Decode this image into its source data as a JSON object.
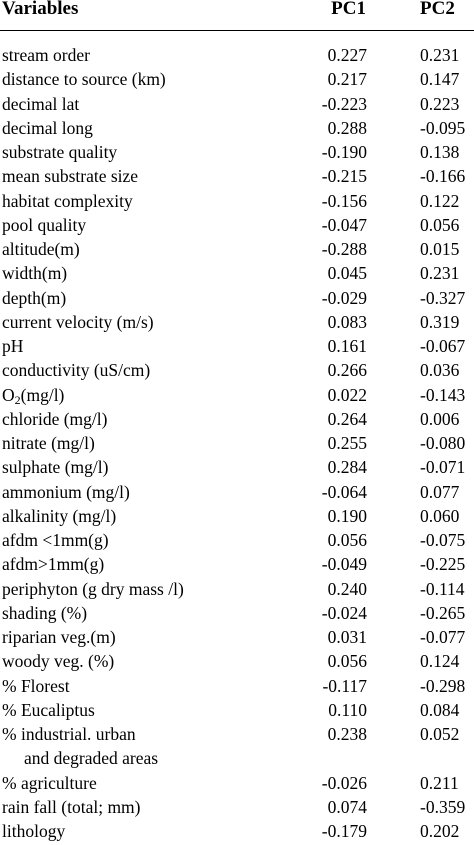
{
  "header": {
    "variables": "Variables",
    "pc1": "PC1",
    "pc2": "PC2"
  },
  "rows": [
    {
      "name": "stream order",
      "pc1": "0.227",
      "pc2": "0.231"
    },
    {
      "name": "distance to source (km)",
      "pc1": "0.217",
      "pc2": "0.147"
    },
    {
      "name": "decimal lat",
      "pc1": "-0.223",
      "pc2": "0.223"
    },
    {
      "name": "decimal long",
      "pc1": "0.288",
      "pc2": "-0.095"
    },
    {
      "name": "substrate quality",
      "pc1": "-0.190",
      "pc2": "0.138"
    },
    {
      "name": "mean substrate size",
      "pc1": "-0.215",
      "pc2": "-0.166"
    },
    {
      "name": "habitat complexity",
      "pc1": "-0.156",
      "pc2": "0.122"
    },
    {
      "name": "pool quality",
      "pc1": "-0.047",
      "pc2": "0.056"
    },
    {
      "name": "altitude(m)",
      "pc1": "-0.288",
      "pc2": "0.015"
    },
    {
      "name": "width(m)",
      "pc1": "0.045",
      "pc2": "0.231"
    },
    {
      "name": "depth(m)",
      "pc1": "-0.029",
      "pc2": "-0.327"
    },
    {
      "name": "current velocity (m/s)",
      "pc1": "0.083",
      "pc2": "0.319"
    },
    {
      "name": "pH",
      "pc1": "0.161",
      "pc2": "-0.067"
    },
    {
      "name": "conductivity (uS/cm)",
      "pc1": "0.266",
      "pc2": "0.036"
    },
    {
      "name_main": "O",
      "name_sub": "2",
      "name_rest": "(mg/l)",
      "pc1": "0.022",
      "pc2": "-0.143"
    },
    {
      "name": "chloride (mg/l)",
      "pc1": "0.264",
      "pc2": "0.006"
    },
    {
      "name": "nitrate (mg/l)",
      "pc1": "0.255",
      "pc2": "-0.080"
    },
    {
      "name": "sulphate (mg/l)",
      "pc1": "0.284",
      "pc2": "-0.071"
    },
    {
      "name": "ammonium (mg/l)",
      "pc1": "-0.064",
      "pc2": "0.077"
    },
    {
      "name": "alkalinity (mg/l)",
      "pc1": "0.190",
      "pc2": "0.060"
    },
    {
      "name": "afdm <1mm(g)",
      "pc1": "0.056",
      "pc2": "-0.075"
    },
    {
      "name": "afdm>1mm(g)",
      "pc1": "-0.049",
      "pc2": "-0.225"
    },
    {
      "name": "periphyton (g dry mass /l)",
      "pc1": "0.240",
      "pc2": "-0.114"
    },
    {
      "name": "shading (%)",
      "pc1": "-0.024",
      "pc2": "-0.265"
    },
    {
      "name": "riparian veg.(m)",
      "pc1": "0.031",
      "pc2": "-0.077"
    },
    {
      "name": "woody veg. (%)",
      "pc1": "0.056",
      "pc2": "0.124"
    },
    {
      "name": "% Florest",
      "pc1": "-0.117",
      "pc2": "-0.298"
    },
    {
      "name": "% Eucaliptus",
      "pc1": "0.110",
      "pc2": "0.084"
    },
    {
      "name": "% industrial. urban",
      "name_cont": "and degraded areas",
      "pc1": "0.238",
      "pc2": "0.052"
    },
    {
      "name": "% agriculture",
      "pc1": "-0.026",
      "pc2": "0.211"
    },
    {
      "name": "rain fall (total; mm)",
      "pc1": "0.074",
      "pc2": "-0.359"
    },
    {
      "name": "lithology",
      "pc1": "-0.179",
      "pc2": "0.202"
    }
  ]
}
